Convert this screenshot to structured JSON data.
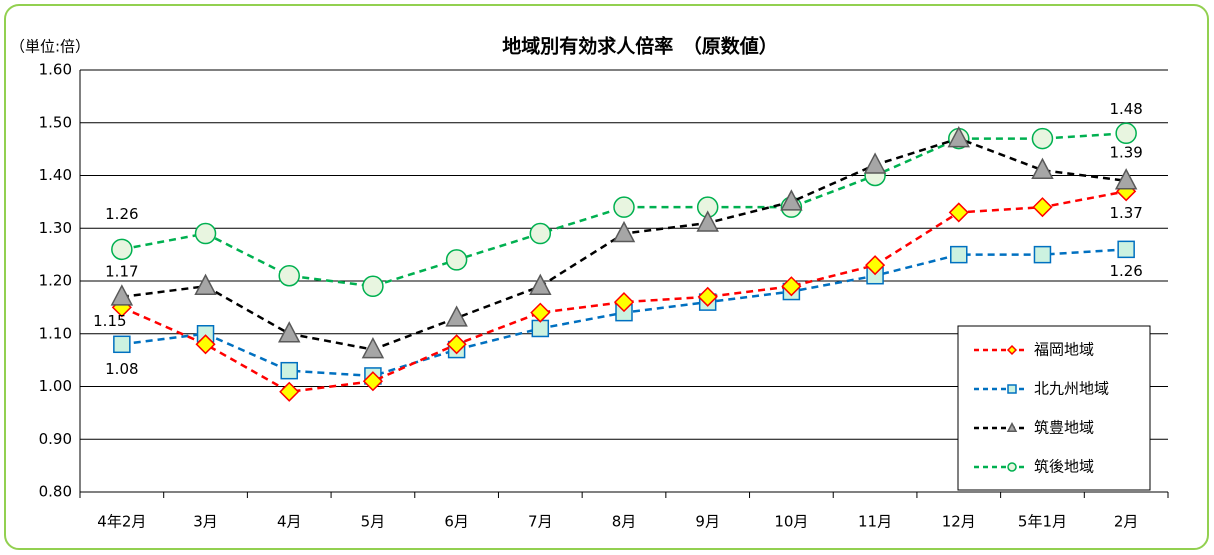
{
  "chart_data": {
    "type": "line",
    "title": "地域別有効求人倍率　（原数値）",
    "y_label": "（単位:倍）",
    "categories": [
      "4年2月",
      "3月",
      "4月",
      "5月",
      "6月",
      "7月",
      "8月",
      "9月",
      "10月",
      "11月",
      "12月",
      "5年1月",
      "2月"
    ],
    "ylim": [
      0.8,
      1.6
    ],
    "yticks": [
      {
        "value": 0.8,
        "label": "0.80"
      },
      {
        "value": 0.9,
        "label": "0.90"
      },
      {
        "value": 1.0,
        "label": "1.00"
      },
      {
        "value": 1.1,
        "label": "1.10"
      },
      {
        "value": 1.2,
        "label": "1.20"
      },
      {
        "value": 1.3,
        "label": "1.30"
      },
      {
        "value": 1.4,
        "label": "1.40"
      },
      {
        "value": 1.5,
        "label": "1.50"
      },
      {
        "value": 1.6,
        "label": "1.60"
      }
    ],
    "grid": true,
    "legend": "lower-right",
    "series": [
      {
        "name": "福岡地域",
        "color": "#ff0000",
        "marker": "diamond",
        "marker_fill": "#ffff00",
        "values": [
          1.15,
          1.08,
          0.99,
          1.01,
          1.08,
          1.14,
          1.16,
          1.17,
          1.19,
          1.23,
          1.33,
          1.34,
          1.37
        ],
        "value_labels": [
          "1.15",
          null,
          null,
          null,
          null,
          null,
          null,
          null,
          null,
          null,
          null,
          null,
          "1.37"
        ]
      },
      {
        "name": "北九州地域",
        "color": "#0070c0",
        "marker": "square",
        "marker_fill": "#ccf2e0",
        "values": [
          1.08,
          1.1,
          1.03,
          1.02,
          1.07,
          1.11,
          1.14,
          1.16,
          1.18,
          1.21,
          1.25,
          1.25,
          1.26
        ],
        "value_labels": [
          "1.08",
          null,
          null,
          null,
          null,
          null,
          null,
          null,
          null,
          null,
          null,
          null,
          "1.26"
        ]
      },
      {
        "name": "筑豊地域",
        "color": "#000000",
        "marker": "triangle",
        "marker_fill": "#a6a6a6",
        "values": [
          1.17,
          1.19,
          1.1,
          1.07,
          1.13,
          1.19,
          1.29,
          1.31,
          1.35,
          1.42,
          1.47,
          1.41,
          1.39
        ],
        "value_labels": [
          "1.17",
          null,
          null,
          null,
          null,
          null,
          null,
          null,
          null,
          null,
          null,
          null,
          "1.39"
        ]
      },
      {
        "name": "筑後地域",
        "color": "#00b050",
        "marker": "circle",
        "marker_fill": "#e8f5e0",
        "values": [
          1.26,
          1.29,
          1.21,
          1.19,
          1.24,
          1.29,
          1.34,
          1.34,
          1.34,
          1.4,
          1.47,
          1.47,
          1.48
        ],
        "value_labels": [
          "1.26",
          null,
          null,
          null,
          null,
          null,
          null,
          null,
          null,
          null,
          null,
          null,
          "1.48"
        ]
      }
    ]
  }
}
